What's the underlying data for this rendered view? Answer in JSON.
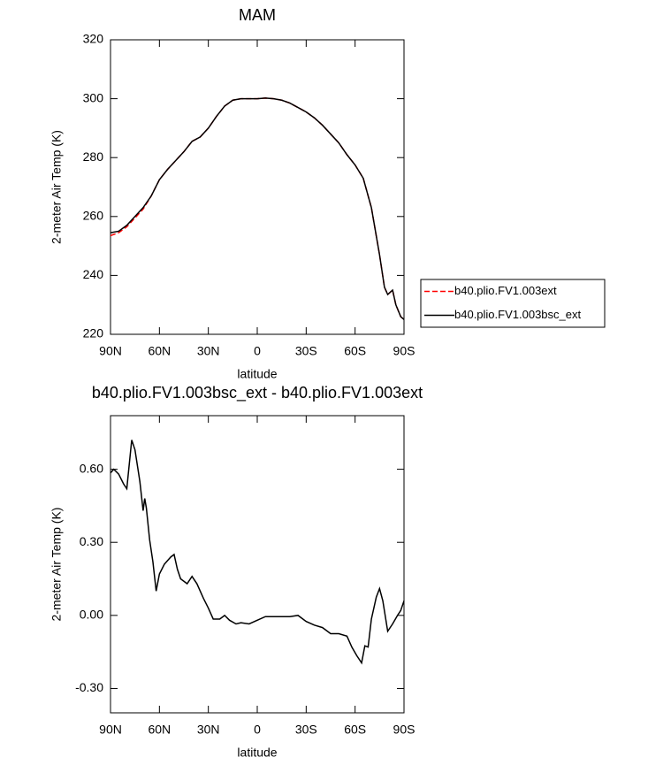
{
  "chart_data": [
    {
      "type": "line",
      "title": "MAM",
      "xlabel": "latitude",
      "ylabel": "2-meter Air Temp (K)",
      "x": [
        90,
        85,
        80,
        75,
        70,
        65,
        60,
        55,
        50,
        45,
        40,
        35,
        30,
        25,
        20,
        15,
        10,
        5,
        0,
        -5,
        -10,
        -15,
        -20,
        -25,
        -30,
        -35,
        -40,
        -45,
        -50,
        -55,
        -60,
        -65,
        -70,
        -75,
        -78,
        -80,
        -82,
        -83,
        -85,
        -88,
        -90
      ],
      "xlim": [
        90,
        -90
      ],
      "xticks": [
        {
          "value": 90,
          "label": "90N"
        },
        {
          "value": 60,
          "label": "60N"
        },
        {
          "value": 30,
          "label": "30N"
        },
        0,
        {
          "value": -30,
          "label": "30S"
        },
        {
          "value": -60,
          "label": "60S"
        },
        {
          "value": -90,
          "label": "90S"
        }
      ],
      "ylim": [
        220,
        320
      ],
      "yticks": [
        220,
        240,
        260,
        280,
        300,
        320
      ],
      "legend": "right",
      "series": [
        {
          "name": "b40.plio.FV1.003ext",
          "color": "#ff0000",
          "dash": "dashed",
          "values": [
            253.5,
            254.5,
            256.5,
            259.5,
            262.5,
            267,
            272.5,
            276,
            279,
            282,
            285.5,
            287,
            290,
            294,
            297.5,
            299.5,
            300,
            300,
            300,
            300.2,
            300,
            299.5,
            298.5,
            297,
            295.5,
            293.5,
            291,
            288,
            285,
            281,
            277.5,
            273,
            263,
            247,
            236,
            233.5,
            234.5,
            235,
            230,
            226,
            225
          ]
        },
        {
          "name": "b40.plio.FV1.003bsc_ext",
          "color": "#000000",
          "values": [
            254.5,
            255,
            257,
            260,
            263,
            267,
            272.5,
            276,
            279,
            282,
            285.5,
            287,
            290,
            294,
            297.5,
            299.5,
            300,
            300,
            300,
            300.2,
            300,
            299.5,
            298.5,
            297,
            295.5,
            293.5,
            291,
            288,
            285,
            281,
            277.5,
            273,
            263,
            247,
            236,
            233.5,
            234.5,
            235,
            230,
            226,
            225
          ]
        }
      ]
    },
    {
      "type": "line",
      "title": "b40.plio.FV1.003bsc_ext - b40.plio.FV1.003ext",
      "xlabel": "latitude",
      "ylabel": "2-meter Air Temp (K)",
      "x": [
        90,
        88,
        85,
        82,
        80,
        77,
        75,
        72,
        70,
        69,
        68,
        66,
        64,
        62,
        60,
        57,
        53,
        51,
        49,
        47,
        43,
        40,
        37,
        33,
        30,
        27,
        23,
        20,
        17,
        13,
        10,
        5,
        0,
        -5,
        -10,
        -15,
        -20,
        -25,
        -30,
        -35,
        -40,
        -45,
        -50,
        -55,
        -58,
        -61,
        -64,
        -66,
        -68,
        -70,
        -73,
        -75,
        -77,
        -80,
        -83,
        -86,
        -88,
        -90
      ],
      "xlim": [
        90,
        -90
      ],
      "xticks": [
        {
          "value": 90,
          "label": "90N"
        },
        {
          "value": 60,
          "label": "60N"
        },
        {
          "value": 30,
          "label": "30N"
        },
        0,
        {
          "value": -30,
          "label": "30S"
        },
        {
          "value": -60,
          "label": "60S"
        },
        {
          "value": -90,
          "label": "90S"
        }
      ],
      "ylim": [
        -0.4,
        0.82
      ],
      "yticks": [
        {
          "value": -0.3,
          "label": "-0.30"
        },
        {
          "value": 0,
          "label": "0.00"
        },
        {
          "value": 0.3,
          "label": "0.30"
        },
        {
          "value": 0.6,
          "label": "0.60"
        }
      ],
      "series": [
        {
          "color": "#000000",
          "values": [
            0.585,
            0.6,
            0.58,
            0.54,
            0.52,
            0.72,
            0.68,
            0.55,
            0.43,
            0.48,
            0.44,
            0.31,
            0.22,
            0.1,
            0.17,
            0.21,
            0.24,
            0.25,
            0.19,
            0.15,
            0.13,
            0.16,
            0.13,
            0.07,
            0.03,
            -0.015,
            -0.015,
            0,
            -0.02,
            -0.035,
            -0.03,
            -0.035,
            -0.02,
            -0.005,
            -0.005,
            -0.005,
            -0.005,
            0,
            -0.025,
            -0.04,
            -0.05,
            -0.075,
            -0.075,
            -0.085,
            -0.13,
            -0.165,
            -0.195,
            -0.125,
            -0.13,
            -0.015,
            0.075,
            0.11,
            0.06,
            -0.065,
            -0.035,
            0,
            0.02,
            0.06
          ]
        }
      ]
    }
  ]
}
